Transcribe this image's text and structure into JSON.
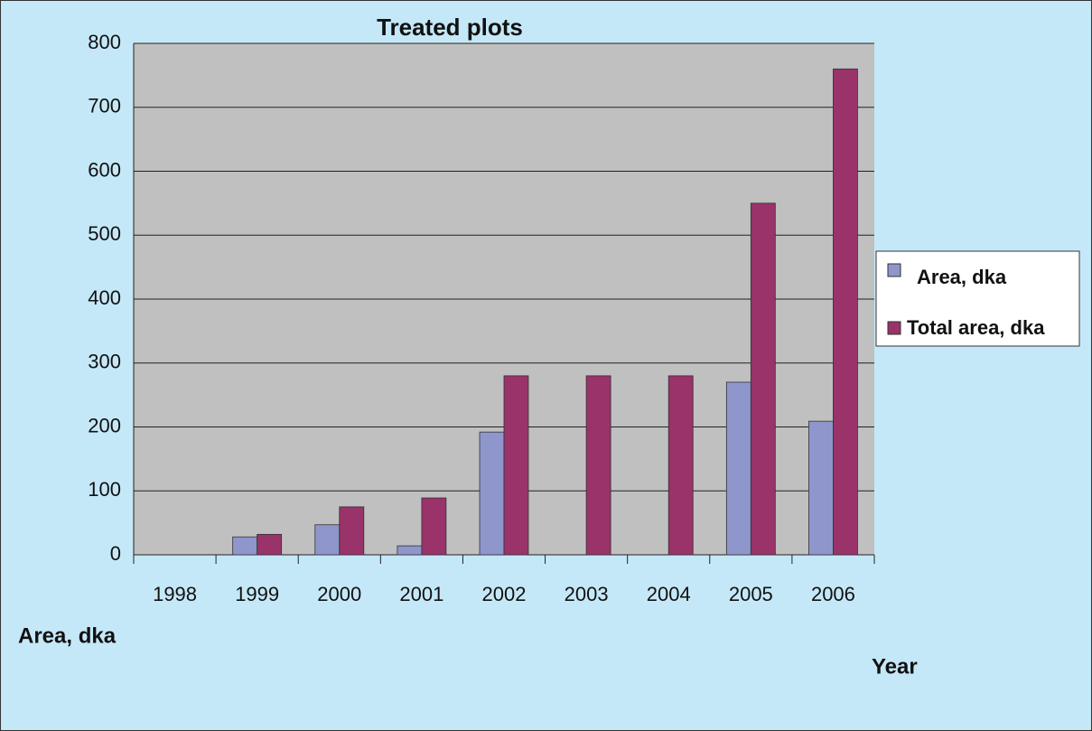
{
  "chart_data": {
    "type": "bar",
    "title": "Treated plots",
    "x_label": "Year",
    "y_label": "Area, dka",
    "categories": [
      "1998",
      "1999",
      "2000",
      "2001",
      "2002",
      "2003",
      "2004",
      "2005",
      "2006"
    ],
    "series": [
      {
        "name": "Area, dka",
        "color": "#8e96cc",
        "values": [
          0,
          28,
          47,
          14,
          192,
          0,
          0,
          270,
          209
        ]
      },
      {
        "name": "Total area, dka",
        "color": "#99336a",
        "values": [
          0,
          32,
          75,
          89,
          280,
          280,
          280,
          550,
          760
        ]
      }
    ],
    "ylim": [
      0,
      800
    ],
    "yticks": [
      0,
      100,
      200,
      300,
      400,
      500,
      600,
      700,
      800
    ],
    "grid": true,
    "legend": "right"
  }
}
